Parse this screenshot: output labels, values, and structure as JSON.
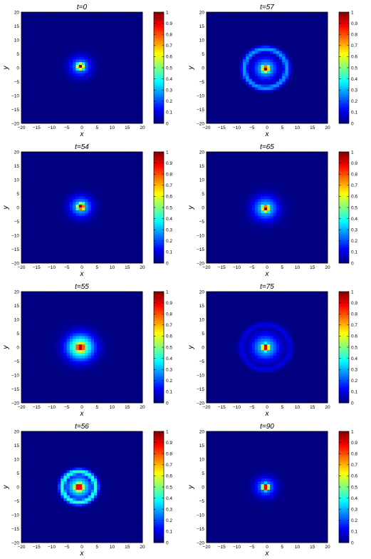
{
  "figure": {
    "colormap": "jet",
    "colorbar_ticks": [
      "0",
      "0.1",
      "0.2",
      "0.3",
      "0.4",
      "0.5",
      "0.6",
      "0.7",
      "0.8",
      "0.9",
      "1"
    ],
    "x_ticks": [
      "−20",
      "−15",
      "−10",
      "−5",
      "0",
      "5",
      "10",
      "15",
      "20"
    ],
    "y_ticks": [
      "20",
      "15",
      "10",
      "5",
      "0",
      "−5",
      "−10",
      "−15",
      "−20"
    ]
  },
  "chart_data": [
    {
      "type": "heatmap",
      "title": "t=0",
      "xlabel": "x",
      "ylabel": "y",
      "xlim": [
        -20,
        20
      ],
      "ylim": [
        -20,
        20
      ],
      "clim": [
        0,
        1
      ],
      "grid": false,
      "colorbar": "right",
      "features": {
        "center": [
          -0.5,
          0.5
        ],
        "core_radius": 1.0,
        "blob_radius": 2.5,
        "blob_peak": 0.3,
        "ring_radius": 0,
        "ring_peak": 0
      }
    },
    {
      "type": "heatmap",
      "title": "t=57",
      "xlabel": "x",
      "ylabel": "y",
      "xlim": [
        -20,
        20
      ],
      "ylim": [
        -20,
        20
      ],
      "clim": [
        0,
        1
      ],
      "grid": false,
      "colorbar": "right",
      "features": {
        "center": [
          -0.5,
          -0.3
        ],
        "core_radius": 1.1,
        "blob_radius": 2.8,
        "blob_peak": 0.35,
        "ring_radius": 7.0,
        "ring_peak": 0.28
      }
    },
    {
      "type": "heatmap",
      "title": "t=54",
      "xlabel": "x",
      "ylabel": "y",
      "xlim": [
        -20,
        20
      ],
      "ylim": [
        -20,
        20
      ],
      "clim": [
        0,
        1
      ],
      "grid": false,
      "colorbar": "right",
      "features": {
        "center": [
          -0.3,
          0.3
        ],
        "core_radius": 1.1,
        "blob_radius": 2.6,
        "blob_peak": 0.35,
        "ring_radius": 0,
        "ring_peak": 0
      }
    },
    {
      "type": "heatmap",
      "title": "t=65",
      "xlabel": "x",
      "ylabel": "y",
      "xlim": [
        -20,
        20
      ],
      "ylim": [
        -20,
        20
      ],
      "clim": [
        0,
        1
      ],
      "grid": false,
      "colorbar": "right",
      "features": {
        "center": [
          -0.5,
          -0.3
        ],
        "core_radius": 1.1,
        "blob_radius": 3.0,
        "blob_peak": 0.35,
        "ring_radius": 0,
        "ring_peak": 0
      }
    },
    {
      "type": "heatmap",
      "title": "t=55",
      "xlabel": "x",
      "ylabel": "y",
      "xlim": [
        -20,
        20
      ],
      "ylim": [
        -20,
        20
      ],
      "clim": [
        0,
        1
      ],
      "grid": false,
      "colorbar": "right",
      "features": {
        "center": [
          -0.5,
          0.0
        ],
        "core_radius": 1.6,
        "blob_radius": 3.3,
        "blob_peak": 0.55,
        "ring_radius": 0,
        "ring_peak": 0
      }
    },
    {
      "type": "heatmap",
      "title": "t=75",
      "xlabel": "x",
      "ylabel": "y",
      "xlim": [
        -20,
        20
      ],
      "ylim": [
        -20,
        20
      ],
      "clim": [
        0,
        1
      ],
      "grid": false,
      "colorbar": "right",
      "features": {
        "center": [
          -0.5,
          0.0
        ],
        "core_radius": 1.1,
        "blob_radius": 3.2,
        "blob_peak": 0.35,
        "ring_radius": 8.0,
        "ring_peak": 0.1
      }
    },
    {
      "type": "heatmap",
      "title": "t=56",
      "xlabel": "x",
      "ylabel": "y",
      "xlim": [
        -20,
        20
      ],
      "ylim": [
        -20,
        20
      ],
      "clim": [
        0,
        1
      ],
      "grid": false,
      "colorbar": "right",
      "features": {
        "center": [
          -1.0,
          0.0
        ],
        "core_radius": 1.4,
        "blob_radius": 3.0,
        "blob_peak": 0.45,
        "ring_radius": 5.5,
        "ring_peak": 0.42
      }
    },
    {
      "type": "heatmap",
      "title": "t=90",
      "xlabel": "x",
      "ylabel": "y",
      "xlim": [
        -20,
        20
      ],
      "ylim": [
        -20,
        20
      ],
      "clim": [
        0,
        1
      ],
      "grid": false,
      "colorbar": "right",
      "features": {
        "center": [
          -0.5,
          0.0
        ],
        "core_radius": 1.0,
        "blob_radius": 2.4,
        "blob_peak": 0.3,
        "ring_radius": 0,
        "ring_peak": 0
      }
    }
  ]
}
